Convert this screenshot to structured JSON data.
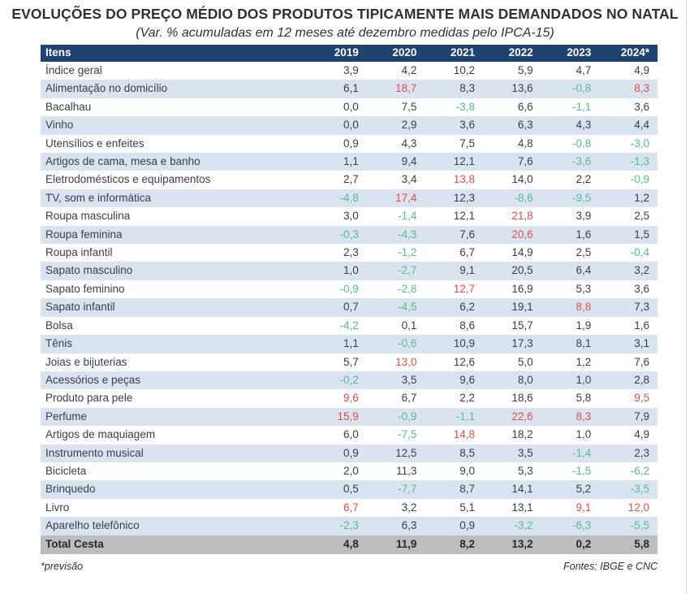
{
  "title": "EVOLUÇÕES DO PREÇO MÉDIO DOS PRODUTOS TIPICAMENTE MAIS DEMANDADOS NO NATAL",
  "subtitle": "(Var. % acumuladas em 12 meses até dezembro medidas pelo IPCA-15)",
  "footnote": "*previsão",
  "sources": "Fontes: IBGE e CNC",
  "colors": {
    "header_bg": "#1F4270",
    "header_text": "#FFFFFF",
    "row_alt_bg": "#DAE3F0",
    "total_bg": "#BDBDBD",
    "highlight_red": "#E05048",
    "negative_green": "#54BD8F",
    "text": "#3A3E49"
  },
  "chart_data": {
    "type": "table",
    "title": "EVOLUÇÕES DO PREÇO MÉDIO DOS PRODUTOS TIPICAMENTE MAIS DEMANDADOS NO NATAL",
    "subtitle": "(Var. % acumuladas em 12 meses até dezembro medidas pelo IPCA-15)",
    "columns": [
      "Itens",
      "2019",
      "2020",
      "2021",
      "2022",
      "2023",
      "2024*"
    ],
    "style_legend": {
      "k": "default dark",
      "r": "red highlight",
      "g": "green (negative/low)"
    },
    "rows": [
      {
        "item": "Índice geral",
        "values": [
          "3,9",
          "4,2",
          "10,2",
          "5,9",
          "4,7",
          "4,9"
        ],
        "styles": [
          "k",
          "k",
          "k",
          "k",
          "k",
          "k"
        ]
      },
      {
        "item": "Alimentação no domicílio",
        "values": [
          "6,1",
          "18,7",
          "8,3",
          "13,6",
          "-0,8",
          "8,3"
        ],
        "styles": [
          "k",
          "r",
          "k",
          "k",
          "g",
          "r"
        ]
      },
      {
        "item": "Bacalhau",
        "values": [
          "0,0",
          "7,5",
          "-3,8",
          "6,6",
          "-1,1",
          "3,6"
        ],
        "styles": [
          "k",
          "k",
          "g",
          "k",
          "g",
          "k"
        ]
      },
      {
        "item": "Vinho",
        "values": [
          "0,0",
          "2,9",
          "3,6",
          "6,3",
          "4,3",
          "4,4"
        ],
        "styles": [
          "k",
          "k",
          "k",
          "k",
          "k",
          "k"
        ]
      },
      {
        "item": "Utensílios e enfeites",
        "values": [
          "0,9",
          "4,3",
          "7,5",
          "4,8",
          "-0,8",
          "-3,0"
        ],
        "styles": [
          "k",
          "k",
          "k",
          "k",
          "g",
          "g"
        ]
      },
      {
        "item": "Artigos de cama, mesa e banho",
        "values": [
          "1,1",
          "9,4",
          "12,1",
          "7,6",
          "-3,6",
          "-1,3"
        ],
        "styles": [
          "k",
          "k",
          "k",
          "k",
          "g",
          "g"
        ]
      },
      {
        "item": "Eletrodomésticos e equipamentos",
        "values": [
          "2,7",
          "3,4",
          "13,8",
          "14,0",
          "2,2",
          "-0,9"
        ],
        "styles": [
          "k",
          "k",
          "r",
          "k",
          "k",
          "g"
        ]
      },
      {
        "item": "TV, som e informática",
        "values": [
          "-4,8",
          "17,4",
          "12,3",
          "-8,6",
          "-9,5",
          "1,2"
        ],
        "styles": [
          "g",
          "r",
          "k",
          "g",
          "g",
          "k"
        ]
      },
      {
        "item": "Roupa masculina",
        "values": [
          "3,0",
          "-1,4",
          "12,1",
          "21,8",
          "3,9",
          "2,5"
        ],
        "styles": [
          "k",
          "g",
          "k",
          "r",
          "k",
          "k"
        ]
      },
      {
        "item": "Roupa feminina",
        "values": [
          "-0,3",
          "-4,3",
          "7,6",
          "20,6",
          "1,6",
          "1,5"
        ],
        "styles": [
          "g",
          "g",
          "k",
          "r",
          "k",
          "k"
        ]
      },
      {
        "item": "Roupa infantil",
        "values": [
          "2,3",
          "-1,2",
          "6,7",
          "14,9",
          "2,5",
          "-0,4"
        ],
        "styles": [
          "k",
          "g",
          "k",
          "k",
          "k",
          "g"
        ]
      },
      {
        "item": "Sapato masculino",
        "values": [
          "1,0",
          "-2,7",
          "9,1",
          "20,5",
          "6,4",
          "3,2"
        ],
        "styles": [
          "k",
          "g",
          "k",
          "k",
          "k",
          "k"
        ]
      },
      {
        "item": "Sapato feminino",
        "values": [
          "-0,9",
          "-2,8",
          "12,7",
          "16,9",
          "5,3",
          "3,6"
        ],
        "styles": [
          "g",
          "g",
          "r",
          "k",
          "k",
          "k"
        ]
      },
      {
        "item": "Sapato infantil",
        "values": [
          "0,7",
          "-4,5",
          "6,2",
          "19,1",
          "8,8",
          "7,3"
        ],
        "styles": [
          "k",
          "g",
          "k",
          "k",
          "r",
          "k"
        ]
      },
      {
        "item": "Bolsa",
        "values": [
          "-4,2",
          "0,1",
          "8,6",
          "15,7",
          "1,9",
          "1,6"
        ],
        "styles": [
          "g",
          "k",
          "k",
          "k",
          "k",
          "k"
        ]
      },
      {
        "item": "Tênis",
        "values": [
          "1,1",
          "-0,6",
          "10,9",
          "17,3",
          "8,1",
          "3,1"
        ],
        "styles": [
          "k",
          "g",
          "k",
          "k",
          "k",
          "k"
        ]
      },
      {
        "item": "Joias e bijuterias",
        "values": [
          "5,7",
          "13,0",
          "12,6",
          "5,0",
          "1,2",
          "7,6"
        ],
        "styles": [
          "k",
          "r",
          "k",
          "k",
          "k",
          "k"
        ]
      },
      {
        "item": "Acessórios e peças",
        "values": [
          "-0,2",
          "3,5",
          "9,6",
          "8,0",
          "1,0",
          "2,8"
        ],
        "styles": [
          "g",
          "k",
          "k",
          "k",
          "k",
          "k"
        ]
      },
      {
        "item": "Produto para pele",
        "values": [
          "9,6",
          "6,7",
          "2,2",
          "18,6",
          "5,8",
          "9,5"
        ],
        "styles": [
          "r",
          "k",
          "k",
          "k",
          "k",
          "r"
        ]
      },
      {
        "item": "Perfume",
        "values": [
          "15,9",
          "-0,9",
          "-1,1",
          "22,6",
          "8,3",
          "7,9"
        ],
        "styles": [
          "r",
          "g",
          "g",
          "r",
          "r",
          "k"
        ]
      },
      {
        "item": "Artigos de maquiagem",
        "values": [
          "6,0",
          "-7,5",
          "14,8",
          "18,2",
          "1,0",
          "4,9"
        ],
        "styles": [
          "k",
          "g",
          "r",
          "k",
          "k",
          "k"
        ]
      },
      {
        "item": "Instrumento musical",
        "values": [
          "0,9",
          "12,5",
          "8,5",
          "3,5",
          "-1,4",
          "2,3"
        ],
        "styles": [
          "k",
          "k",
          "k",
          "k",
          "g",
          "k"
        ]
      },
      {
        "item": "Bicicleta",
        "values": [
          "2,0",
          "11,3",
          "9,0",
          "5,3",
          "-1,5",
          "-6,2"
        ],
        "styles": [
          "k",
          "k",
          "k",
          "k",
          "g",
          "g"
        ]
      },
      {
        "item": "Brinquedo",
        "values": [
          "0,5",
          "-7,7",
          "8,7",
          "14,1",
          "5,2",
          "-3,5"
        ],
        "styles": [
          "k",
          "g",
          "k",
          "k",
          "k",
          "g"
        ]
      },
      {
        "item": "Livro",
        "values": [
          "6,7",
          "3,2",
          "5,1",
          "13,1",
          "9,1",
          "12,0"
        ],
        "styles": [
          "r",
          "k",
          "k",
          "k",
          "r",
          "r"
        ]
      },
      {
        "item": "Aparelho telefônico",
        "values": [
          "-2,3",
          "6,3",
          "0,9",
          "-3,2",
          "-6,3",
          "-5,5"
        ],
        "styles": [
          "g",
          "k",
          "k",
          "g",
          "g",
          "g"
        ]
      }
    ],
    "total_row": {
      "item": "Total Cesta",
      "values": [
        "4,8",
        "11,9",
        "8,2",
        "13,2",
        "0,2",
        "5,8"
      ]
    }
  }
}
